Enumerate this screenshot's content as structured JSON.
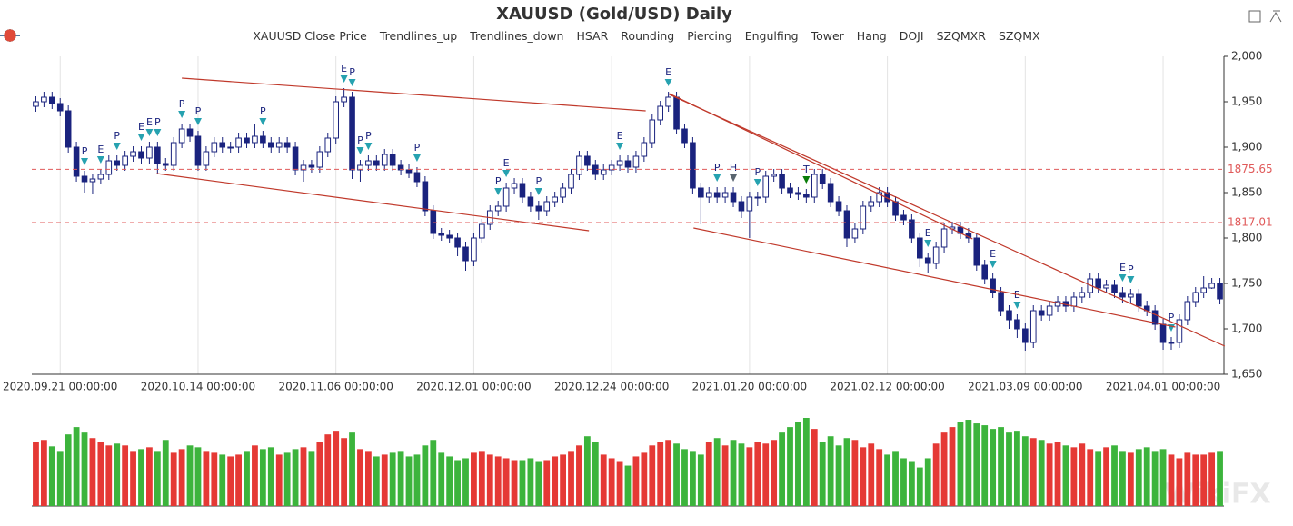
{
  "chart_data": {
    "type": "candlestick",
    "title": "XAUUSD (Gold/USD) Daily",
    "watermark": "WikiFX",
    "categories": [
      null,
      null,
      null,
      "2020.09.21 00:00:00",
      null,
      null,
      null,
      null,
      null,
      null,
      null,
      null,
      null,
      null,
      null,
      null,
      null,
      null,
      null,
      null,
      "2020.10.14 00:00:00",
      null,
      null,
      null,
      null,
      null,
      null,
      null,
      null,
      null,
      null,
      null,
      null,
      null,
      null,
      null,
      null,
      "2020.11.06 00:00:00",
      null,
      null,
      null,
      null,
      null,
      null,
      null,
      null,
      null,
      null,
      null,
      null,
      null,
      null,
      null,
      null,
      "2020.12.01 00:00:00",
      null,
      null,
      null,
      null,
      null,
      null,
      null,
      null,
      null,
      null,
      null,
      null,
      null,
      null,
      null,
      null,
      "2020.12.24 00:00:00",
      null,
      null,
      null,
      null,
      null,
      null,
      null,
      null,
      null,
      null,
      null,
      null,
      null,
      null,
      null,
      null,
      "2021.01.20 00:00:00",
      null,
      null,
      null,
      null,
      null,
      null,
      null,
      null,
      null,
      null,
      null,
      null,
      null,
      null,
      null,
      null,
      "2021.02.12 00:00:00",
      null,
      null,
      null,
      null,
      null,
      null,
      null,
      null,
      null,
      null,
      null,
      null,
      null,
      null,
      null,
      null,
      "2021.03.09 00:00:00",
      null,
      null,
      null,
      null,
      null,
      null,
      null,
      null,
      null,
      null,
      null,
      null,
      null,
      null,
      null,
      null,
      "2021.04.01 00:00:00",
      null,
      null,
      null,
      null,
      null,
      null,
      null
    ],
    "open": [
      1945,
      1950,
      1955,
      1948,
      1940,
      1900,
      1868,
      1862,
      1865,
      1870,
      1885,
      1880,
      1890,
      1895,
      1888,
      1900,
      1882,
      1880,
      1905,
      1920,
      1912,
      1880,
      1895,
      1905,
      1900,
      1900,
      1910,
      1905,
      1912,
      1905,
      1900,
      1905,
      1900,
      1875,
      1880,
      1878,
      1895,
      1910,
      1950,
      1955,
      1875,
      1880,
      1885,
      1880,
      1892,
      1880,
      1875,
      1872,
      1862,
      1830,
      1805,
      1803,
      1800,
      1790,
      1775,
      1800,
      1815,
      1830,
      1835,
      1855,
      1860,
      1845,
      1835,
      1830,
      1840,
      1845,
      1855,
      1870,
      1890,
      1880,
      1870,
      1875,
      1880,
      1885,
      1878,
      1890,
      1905,
      1930,
      1945,
      1955,
      1920,
      1905,
      1855,
      1845,
      1850,
      1845,
      1850,
      1840,
      1830,
      1845,
      1845,
      1868,
      1870,
      1855,
      1850,
      1848,
      1845,
      1870,
      1860,
      1840,
      1830,
      1800,
      1810,
      1835,
      1840,
      1850,
      1840,
      1825,
      1820,
      1800,
      1778,
      1772,
      1790,
      1810,
      1812,
      1805,
      1800,
      1770,
      1755,
      1740,
      1720,
      1710,
      1700,
      1685,
      1720,
      1715,
      1725,
      1730,
      1725,
      1735,
      1740,
      1755,
      1745,
      1748,
      1740,
      1735,
      1738,
      1725,
      1720,
      1705,
      1685,
      1685,
      1710,
      1730,
      1740,
      1745,
      1750
    ],
    "high": [
      1956,
      1961,
      1961,
      1954,
      1946,
      1906,
      1874,
      1871,
      1876,
      1891,
      1891,
      1896,
      1901,
      1901,
      1906,
      1906,
      1888,
      1911,
      1926,
      1926,
      1918,
      1901,
      1911,
      1911,
      1906,
      1916,
      1916,
      1925,
      1918,
      1911,
      1911,
      1911,
      1906,
      1886,
      1886,
      1901,
      1916,
      1956,
      1965,
      1961,
      1886,
      1891,
      1891,
      1898,
      1898,
      1886,
      1881,
      1878,
      1868,
      1836,
      1811,
      1809,
      1806,
      1796,
      1806,
      1821,
      1836,
      1841,
      1861,
      1866,
      1866,
      1851,
      1841,
      1846,
      1851,
      1861,
      1876,
      1896,
      1896,
      1886,
      1881,
      1886,
      1891,
      1891,
      1896,
      1911,
      1936,
      1951,
      1961,
      1961,
      1926,
      1911,
      1861,
      1856,
      1856,
      1856,
      1856,
      1846,
      1851,
      1851,
      1874,
      1876,
      1876,
      1861,
      1856,
      1854,
      1876,
      1876,
      1866,
      1846,
      1836,
      1816,
      1841,
      1846,
      1856,
      1856,
      1846,
      1831,
      1826,
      1806,
      1784,
      1796,
      1816,
      1818,
      1818,
      1811,
      1806,
      1776,
      1761,
      1746,
      1726,
      1716,
      1706,
      1726,
      1726,
      1731,
      1736,
      1736,
      1741,
      1746,
      1761,
      1761,
      1754,
      1754,
      1746,
      1744,
      1744,
      1731,
      1726,
      1711,
      1691,
      1716,
      1736,
      1746,
      1758,
      1756,
      1756
    ],
    "low": [
      1939,
      1944,
      1942,
      1934,
      1894,
      1862,
      1850,
      1848,
      1859,
      1864,
      1874,
      1874,
      1884,
      1882,
      1882,
      1870,
      1874,
      1874,
      1899,
      1906,
      1874,
      1874,
      1889,
      1894,
      1894,
      1894,
      1899,
      1899,
      1899,
      1894,
      1894,
      1894,
      1869,
      1862,
      1872,
      1872,
      1889,
      1904,
      1944,
      1865,
      1862,
      1874,
      1874,
      1874,
      1874,
      1869,
      1866,
      1856,
      1824,
      1799,
      1797,
      1794,
      1780,
      1764,
      1769,
      1794,
      1809,
      1824,
      1829,
      1849,
      1839,
      1829,
      1820,
      1824,
      1834,
      1839,
      1849,
      1864,
      1874,
      1864,
      1864,
      1869,
      1874,
      1872,
      1872,
      1884,
      1899,
      1924,
      1939,
      1914,
      1899,
      1849,
      1815,
      1839,
      1839,
      1839,
      1834,
      1822,
      1800,
      1835,
      1839,
      1862,
      1849,
      1844,
      1842,
      1839,
      1839,
      1854,
      1834,
      1824,
      1790,
      1794,
      1804,
      1829,
      1834,
      1834,
      1819,
      1814,
      1794,
      1768,
      1762,
      1766,
      1784,
      1804,
      1799,
      1794,
      1764,
      1749,
      1734,
      1714,
      1700,
      1690,
      1676,
      1679,
      1709,
      1709,
      1719,
      1719,
      1719,
      1729,
      1734,
      1739,
      1739,
      1734,
      1729,
      1729,
      1719,
      1714,
      1699,
      1677,
      1677,
      1679,
      1704,
      1724,
      1734,
      1744,
      1727
    ],
    "close": [
      1950,
      1955,
      1948,
      1940,
      1900,
      1868,
      1862,
      1865,
      1870,
      1885,
      1880,
      1890,
      1895,
      1888,
      1900,
      1882,
      1880,
      1905,
      1920,
      1912,
      1880,
      1895,
      1905,
      1900,
      1900,
      1910,
      1905,
      1912,
      1905,
      1900,
      1905,
      1900,
      1875,
      1880,
      1878,
      1895,
      1910,
      1950,
      1955,
      1875,
      1880,
      1885,
      1880,
      1892,
      1880,
      1875,
      1872,
      1862,
      1830,
      1805,
      1803,
      1800,
      1790,
      1775,
      1800,
      1815,
      1830,
      1835,
      1855,
      1860,
      1845,
      1835,
      1830,
      1840,
      1845,
      1855,
      1870,
      1890,
      1880,
      1870,
      1875,
      1880,
      1885,
      1878,
      1890,
      1905,
      1930,
      1945,
      1955,
      1920,
      1905,
      1855,
      1845,
      1850,
      1845,
      1850,
      1840,
      1830,
      1845,
      1845,
      1868,
      1870,
      1855,
      1850,
      1848,
      1845,
      1870,
      1860,
      1840,
      1830,
      1800,
      1810,
      1835,
      1840,
      1850,
      1840,
      1825,
      1820,
      1800,
      1778,
      1772,
      1790,
      1810,
      1812,
      1805,
      1800,
      1770,
      1755,
      1740,
      1720,
      1710,
      1700,
      1685,
      1720,
      1715,
      1725,
      1730,
      1725,
      1735,
      1740,
      1755,
      1745,
      1748,
      1740,
      1735,
      1738,
      1725,
      1720,
      1705,
      1685,
      1685,
      1710,
      1730,
      1740,
      1745,
      1750,
      1733
    ],
    "volume": [
      70,
      72,
      65,
      60,
      78,
      86,
      80,
      74,
      70,
      66,
      68,
      66,
      60,
      62,
      64,
      60,
      72,
      58,
      62,
      66,
      64,
      60,
      58,
      56,
      54,
      56,
      60,
      66,
      62,
      64,
      56,
      58,
      62,
      64,
      60,
      70,
      78,
      82,
      74,
      80,
      62,
      60,
      54,
      56,
      58,
      60,
      54,
      56,
      66,
      72,
      58,
      54,
      50,
      52,
      58,
      60,
      56,
      54,
      52,
      50,
      50,
      52,
      48,
      50,
      54,
      56,
      60,
      66,
      76,
      70,
      56,
      52,
      48,
      44,
      54,
      58,
      66,
      70,
      72,
      68,
      62,
      60,
      56,
      70,
      74,
      66,
      72,
      68,
      64,
      70,
      68,
      72,
      80,
      86,
      92,
      96,
      84,
      70,
      76,
      66,
      74,
      72,
      64,
      68,
      62,
      56,
      60,
      52,
      48,
      42,
      52,
      68,
      80,
      86,
      92,
      94,
      90,
      88,
      84,
      86,
      80,
      82,
      76,
      74,
      72,
      68,
      70,
      66,
      64,
      68,
      62,
      60,
      64,
      66,
      60,
      58,
      62,
      64,
      60,
      62,
      56,
      52,
      58,
      56,
      56,
      58,
      60
    ],
    "patterns": [
      null,
      null,
      null,
      null,
      null,
      null,
      "P",
      null,
      "E",
      null,
      "P",
      null,
      null,
      "E",
      "E",
      "P",
      null,
      null,
      "P",
      null,
      "P",
      null,
      null,
      null,
      null,
      null,
      null,
      null,
      "P",
      null,
      null,
      null,
      null,
      null,
      null,
      null,
      null,
      null,
      "E",
      "P",
      "P",
      "P",
      null,
      null,
      null,
      null,
      null,
      "P",
      null,
      null,
      null,
      null,
      null,
      null,
      null,
      null,
      null,
      "P",
      "E",
      null,
      null,
      null,
      "P",
      null,
      null,
      null,
      null,
      null,
      null,
      null,
      null,
      null,
      "E",
      null,
      null,
      null,
      null,
      null,
      "E",
      null,
      null,
      null,
      null,
      null,
      "P",
      null,
      "H",
      null,
      null,
      "P",
      null,
      null,
      null,
      null,
      null,
      "T",
      null,
      null,
      null,
      null,
      null,
      null,
      null,
      null,
      null,
      null,
      null,
      null,
      null,
      null,
      "E",
      null,
      null,
      null,
      null,
      null,
      null,
      null,
      "E",
      null,
      null,
      "E",
      null,
      null,
      null,
      null,
      null,
      null,
      null,
      null,
      null,
      null,
      null,
      null,
      "E",
      "P",
      null,
      null,
      null,
      null,
      "P",
      null,
      null,
      null,
      null,
      null,
      null
    ],
    "pattern_colors": {
      "P": "#26a2b0",
      "E": "#26a2b0",
      "T": "#0a7d0a",
      "H": "#5a6570"
    },
    "up_color": "#1a237e",
    "down_color": "#1a237e",
    "volume_up_color": "#e53935",
    "volume_down_color": "#3cb43c",
    "trendline_color": "#c0392b",
    "trendlines": [
      {
        "x": [
          18.0,
          75.2
        ],
        "y": [
          1976,
          1940
        ]
      },
      {
        "x": [
          14.9,
          68.2
        ],
        "y": [
          1871,
          1808
        ]
      },
      {
        "x": [
          78.1,
          115.5
        ],
        "y": [
          1959,
          1799
        ]
      },
      {
        "x": [
          78.1,
          146.6
        ],
        "y": [
          1958,
          1681
        ]
      },
      {
        "x": [
          81.1,
          140.5
        ],
        "y": [
          1811,
          1702
        ]
      }
    ],
    "hsar_color": "#e05a5a",
    "hsar": [
      1875.65,
      1817.01
    ],
    "ylim": [
      1650,
      2000
    ],
    "yticks": [
      {
        "value": 1650,
        "label": "1,650"
      },
      {
        "value": 1700,
        "label": "1,700"
      },
      {
        "value": 1750,
        "label": "1,750"
      },
      {
        "value": 1800,
        "label": "1,800"
      },
      {
        "value": 1850,
        "label": "1,850"
      },
      {
        "value": 1900,
        "label": "1,900"
      },
      {
        "value": 1950,
        "label": "1,950"
      },
      {
        "value": 2000,
        "label": "2,000"
      }
    ],
    "legend": [
      {
        "name": "XAUUSD Close Price"
      },
      {
        "name": "Trendlines_up",
        "color": "#2ca02c",
        "icon": "line-circle"
      },
      {
        "name": "Trendlines_down",
        "color": "#a0392b",
        "icon": "line-circle"
      },
      {
        "name": "HSAR",
        "color": "#e8837a",
        "icon": "line-circle"
      },
      {
        "name": "Rounding",
        "color": "#2f78b4",
        "icon": "line-dot"
      },
      {
        "name": "Piercing",
        "color": "#26a2b0",
        "icon": "circle"
      },
      {
        "name": "Engulfing",
        "color": "#26a2b0",
        "icon": "circle"
      },
      {
        "name": "Tower",
        "color": "#0a7d0a",
        "icon": "circle"
      },
      {
        "name": "Hang",
        "color": "#4a5c6a",
        "icon": "circle"
      },
      {
        "name": "DOJI",
        "color": "#2b3a4a",
        "icon": "circle"
      },
      {
        "name": "SZQMXR",
        "color": "#e04a3a",
        "icon": "circle"
      },
      {
        "name": "SZQMX",
        "color": "#e04a3a",
        "icon": "circle"
      }
    ]
  }
}
